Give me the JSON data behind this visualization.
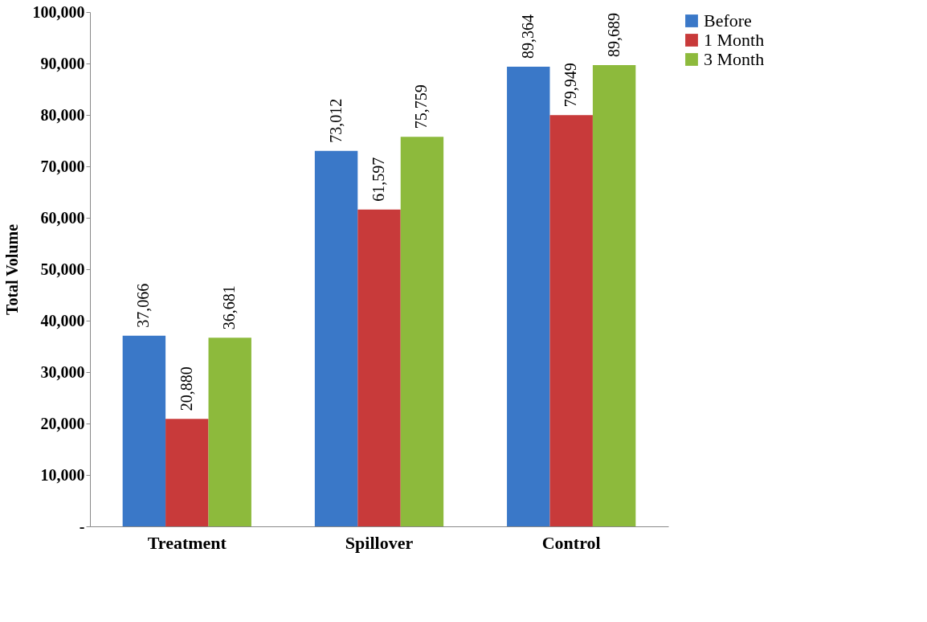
{
  "chart_data": {
    "type": "bar",
    "ylabel": "Total Volume",
    "categories": [
      "Treatment",
      "Spillover",
      "Control"
    ],
    "series": [
      {
        "name": "Before",
        "color": "#3a78c8",
        "values": [
          37066,
          73012,
          89364
        ],
        "value_labels": [
          "37,066",
          "73,012",
          "89,364"
        ]
      },
      {
        "name": "1 Month",
        "color": "#c83a3a",
        "values": [
          20880,
          61597,
          79949
        ],
        "value_labels": [
          "20,880",
          "61,597",
          "79,949"
        ]
      },
      {
        "name": "3 Month",
        "color": "#8dba3c",
        "values": [
          36681,
          75759,
          89689
        ],
        "value_labels": [
          "36,681",
          "75,759",
          "89,689"
        ]
      }
    ],
    "ylim": [
      0,
      100000
    ],
    "yticks": [
      {
        "value": 0,
        "label": "-"
      },
      {
        "value": 10000,
        "label": "10,000"
      },
      {
        "value": 20000,
        "label": "20,000"
      },
      {
        "value": 30000,
        "label": "30,000"
      },
      {
        "value": 40000,
        "label": "40,000"
      },
      {
        "value": 50000,
        "label": "50,000"
      },
      {
        "value": 60000,
        "label": "60,000"
      },
      {
        "value": 70000,
        "label": "70,000"
      },
      {
        "value": 80000,
        "label": "80,000"
      },
      {
        "value": 90000,
        "label": "90,000"
      },
      {
        "value": 100000,
        "label": "100,000"
      }
    ],
    "legend": "right",
    "grid": false
  }
}
